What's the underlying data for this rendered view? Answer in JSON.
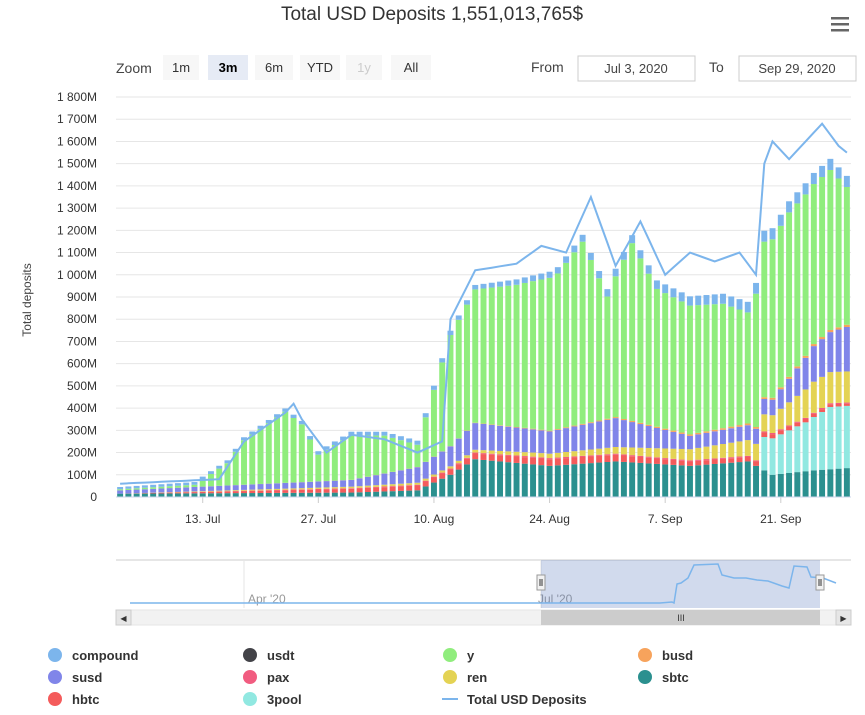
{
  "chart_data": {
    "type": "bar",
    "title": "Total USD Deposits 1,551,013,765$",
    "ylabel": "Total deposits",
    "xlabel": "",
    "ylim": [
      0,
      1800000000
    ],
    "y_tick_labels": [
      "0",
      "100M",
      "200M",
      "300M",
      "400M",
      "500M",
      "600M",
      "700M",
      "800M",
      "900M",
      "1 000M",
      "1 100M",
      "1 200M",
      "1 300M",
      "1 400M",
      "1 500M",
      "1 600M",
      "1 700M",
      "1 800M"
    ],
    "x_tick_labels": [
      {
        "label": "13. Jul",
        "date": "2020-07-13"
      },
      {
        "label": "27. Jul",
        "date": "2020-07-27"
      },
      {
        "label": "10. Aug",
        "date": "2020-08-10"
      },
      {
        "label": "24. Aug",
        "date": "2020-08-24"
      },
      {
        "label": "7. Sep",
        "date": "2020-09-07"
      },
      {
        "label": "21. Sep",
        "date": "2020-09-21"
      }
    ],
    "x_start": "2020-07-03",
    "x_end": "2020-09-29",
    "stacked": true,
    "grid": true,
    "legend_position": "bottom",
    "series": [
      {
        "name": "compound",
        "color": "#7cb5ec",
        "points": [
          [
            "2020-07-03",
            0.01
          ],
          [
            "2020-08-15",
            0.02
          ],
          [
            "2020-09-20",
            0.05
          ]
        ]
      },
      {
        "name": "usdt",
        "color": "#434348",
        "points": [
          [
            "2020-07-03",
            0.0
          ],
          [
            "2020-09-29",
            0.0
          ]
        ]
      },
      {
        "name": "y",
        "color": "#90ed7d",
        "points": [
          [
            "2020-07-03",
            0.005
          ],
          [
            "2020-07-12",
            0.01
          ],
          [
            "2020-07-16",
            0.1
          ],
          [
            "2020-07-18",
            0.2
          ],
          [
            "2020-07-23",
            0.32
          ],
          [
            "2020-07-25",
            0.26
          ],
          [
            "2020-07-27",
            0.12
          ],
          [
            "2020-07-29",
            0.16
          ],
          [
            "2020-07-31",
            0.2
          ],
          [
            "2020-08-04",
            0.17
          ],
          [
            "2020-08-08",
            0.1
          ],
          [
            "2020-08-12",
            0.5
          ],
          [
            "2020-08-15",
            0.6
          ],
          [
            "2020-08-20",
            0.64
          ],
          [
            "2020-08-25",
            0.7
          ],
          [
            "2020-08-28",
            0.82
          ],
          [
            "2020-08-31",
            0.55
          ],
          [
            "2020-09-03",
            0.8
          ],
          [
            "2020-09-06",
            0.62
          ],
          [
            "2020-09-10",
            0.58
          ],
          [
            "2020-09-14",
            0.56
          ],
          [
            "2020-09-17",
            0.5
          ],
          [
            "2020-09-19",
            0.7
          ],
          [
            "2020-09-22",
            0.74
          ],
          [
            "2020-09-25",
            0.72
          ],
          [
            "2020-09-27",
            0.72
          ],
          [
            "2020-09-29",
            0.62
          ]
        ]
      },
      {
        "name": "busd",
        "color": "#f7a35c",
        "points": [
          [
            "2020-07-03",
            0.0
          ],
          [
            "2020-08-12",
            0.001
          ],
          [
            "2020-09-29",
            0.01
          ]
        ]
      },
      {
        "name": "susd",
        "color": "#8085e9",
        "points": [
          [
            "2020-07-03",
            0.015
          ],
          [
            "2020-07-31",
            0.03
          ],
          [
            "2020-08-12",
            0.09
          ],
          [
            "2020-08-15",
            0.12
          ],
          [
            "2020-08-24",
            0.1
          ],
          [
            "2020-09-01",
            0.13
          ],
          [
            "2020-09-10",
            0.06
          ],
          [
            "2020-09-20",
            0.07
          ],
          [
            "2020-09-25",
            0.16
          ],
          [
            "2020-09-29",
            0.2
          ]
        ]
      },
      {
        "name": "pax",
        "color": "#f15c80",
        "points": [
          [
            "2020-07-03",
            0.0
          ],
          [
            "2020-08-22",
            0.005
          ],
          [
            "2020-09-29",
            0.005
          ]
        ]
      },
      {
        "name": "ren",
        "color": "#e4d354",
        "points": [
          [
            "2020-07-03",
            0.0
          ],
          [
            "2020-08-12",
            0.01
          ],
          [
            "2020-08-24",
            0.02
          ],
          [
            "2020-09-01",
            0.03
          ],
          [
            "2020-09-10",
            0.05
          ],
          [
            "2020-09-20",
            0.08
          ],
          [
            "2020-09-25",
            0.14
          ],
          [
            "2020-09-29",
            0.14
          ]
        ]
      },
      {
        "name": "sbtc",
        "color": "#2b908f",
        "points": [
          [
            "2020-07-03",
            0.015
          ],
          [
            "2020-07-31",
            0.02
          ],
          [
            "2020-08-08",
            0.03
          ],
          [
            "2020-08-12",
            0.1
          ],
          [
            "2020-08-15",
            0.17
          ],
          [
            "2020-08-24",
            0.14
          ],
          [
            "2020-09-01",
            0.16
          ],
          [
            "2020-09-10",
            0.14
          ],
          [
            "2020-09-17",
            0.16
          ],
          [
            "2020-09-20",
            0.1
          ],
          [
            "2020-09-25",
            0.12
          ],
          [
            "2020-09-29",
            0.13
          ]
        ]
      },
      {
        "name": "hbtc",
        "color": "#f45b5b",
        "points": [
          [
            "2020-07-03",
            0.0
          ],
          [
            "2020-08-22",
            0.03
          ],
          [
            "2020-09-01",
            0.03
          ],
          [
            "2020-09-10",
            0.02
          ],
          [
            "2020-09-19",
            0.02
          ],
          [
            "2020-09-29",
            0.01
          ]
        ]
      },
      {
        "name": "3pool",
        "color": "#91e8e1",
        "points": [
          [
            "2020-07-03",
            0.0
          ],
          [
            "2020-09-18",
            0.0
          ],
          [
            "2020-09-19",
            0.15
          ],
          [
            "2020-09-24",
            0.22
          ],
          [
            "2020-09-27",
            0.28
          ],
          [
            "2020-09-29",
            0.28
          ]
        ]
      },
      {
        "name": "Total USD Deposits",
        "color": "#7cb5ec",
        "type": "line",
        "points": [
          [
            "2020-07-03",
            0.06
          ],
          [
            "2020-07-12",
            0.075
          ],
          [
            "2020-07-15",
            0.08
          ],
          [
            "2020-07-18",
            0.25
          ],
          [
            "2020-07-23",
            0.38
          ],
          [
            "2020-07-24",
            0.42
          ],
          [
            "2020-07-25",
            0.35
          ],
          [
            "2020-07-28",
            0.2
          ],
          [
            "2020-07-31",
            0.28
          ],
          [
            "2020-08-04",
            0.26
          ],
          [
            "2020-08-08",
            0.2
          ],
          [
            "2020-08-11",
            0.25
          ],
          [
            "2020-08-12",
            0.8
          ],
          [
            "2020-08-15",
            1.02
          ],
          [
            "2020-08-20",
            1.05
          ],
          [
            "2020-08-23",
            1.13
          ],
          [
            "2020-08-26",
            1.1
          ],
          [
            "2020-08-29",
            1.35
          ],
          [
            "2020-09-01",
            1.04
          ],
          [
            "2020-09-04",
            1.24
          ],
          [
            "2020-09-07",
            1.0
          ],
          [
            "2020-09-10",
            1.1
          ],
          [
            "2020-09-13",
            1.06
          ],
          [
            "2020-09-16",
            1.1
          ],
          [
            "2020-09-18",
            1.0
          ],
          [
            "2020-09-19",
            1.5
          ],
          [
            "2020-09-20",
            1.6
          ],
          [
            "2020-09-22",
            1.52
          ],
          [
            "2020-09-24",
            1.6
          ],
          [
            "2020-09-26",
            1.68
          ],
          [
            "2020-09-28",
            1.58
          ],
          [
            "2020-09-29",
            1.55
          ]
        ]
      }
    ]
  },
  "toolbar": {
    "zoom_label": "Zoom",
    "buttons": [
      {
        "label": "1m",
        "state": "normal"
      },
      {
        "label": "3m",
        "state": "selected"
      },
      {
        "label": "6m",
        "state": "normal"
      },
      {
        "label": "YTD",
        "state": "normal"
      },
      {
        "label": "1y",
        "state": "disabled"
      },
      {
        "label": "All",
        "state": "normal"
      }
    ],
    "from_label": "From",
    "from_value": "Jul 3, 2020",
    "to_label": "To",
    "to_value": "Sep 29, 2020"
  },
  "navigator": {
    "labels": [
      "Apr '20",
      "Jul '20"
    ],
    "scrollbar_grip": "III",
    "left_arrow": "◀",
    "right_arrow": "▶"
  },
  "menu_icon": "hamburger-icon",
  "colors": {
    "grid": "#e6e6e6",
    "line": "#7cb5ec",
    "navigator_mask": "rgba(102,133,194,0.3)",
    "button_selected": "#e6ebf5"
  }
}
